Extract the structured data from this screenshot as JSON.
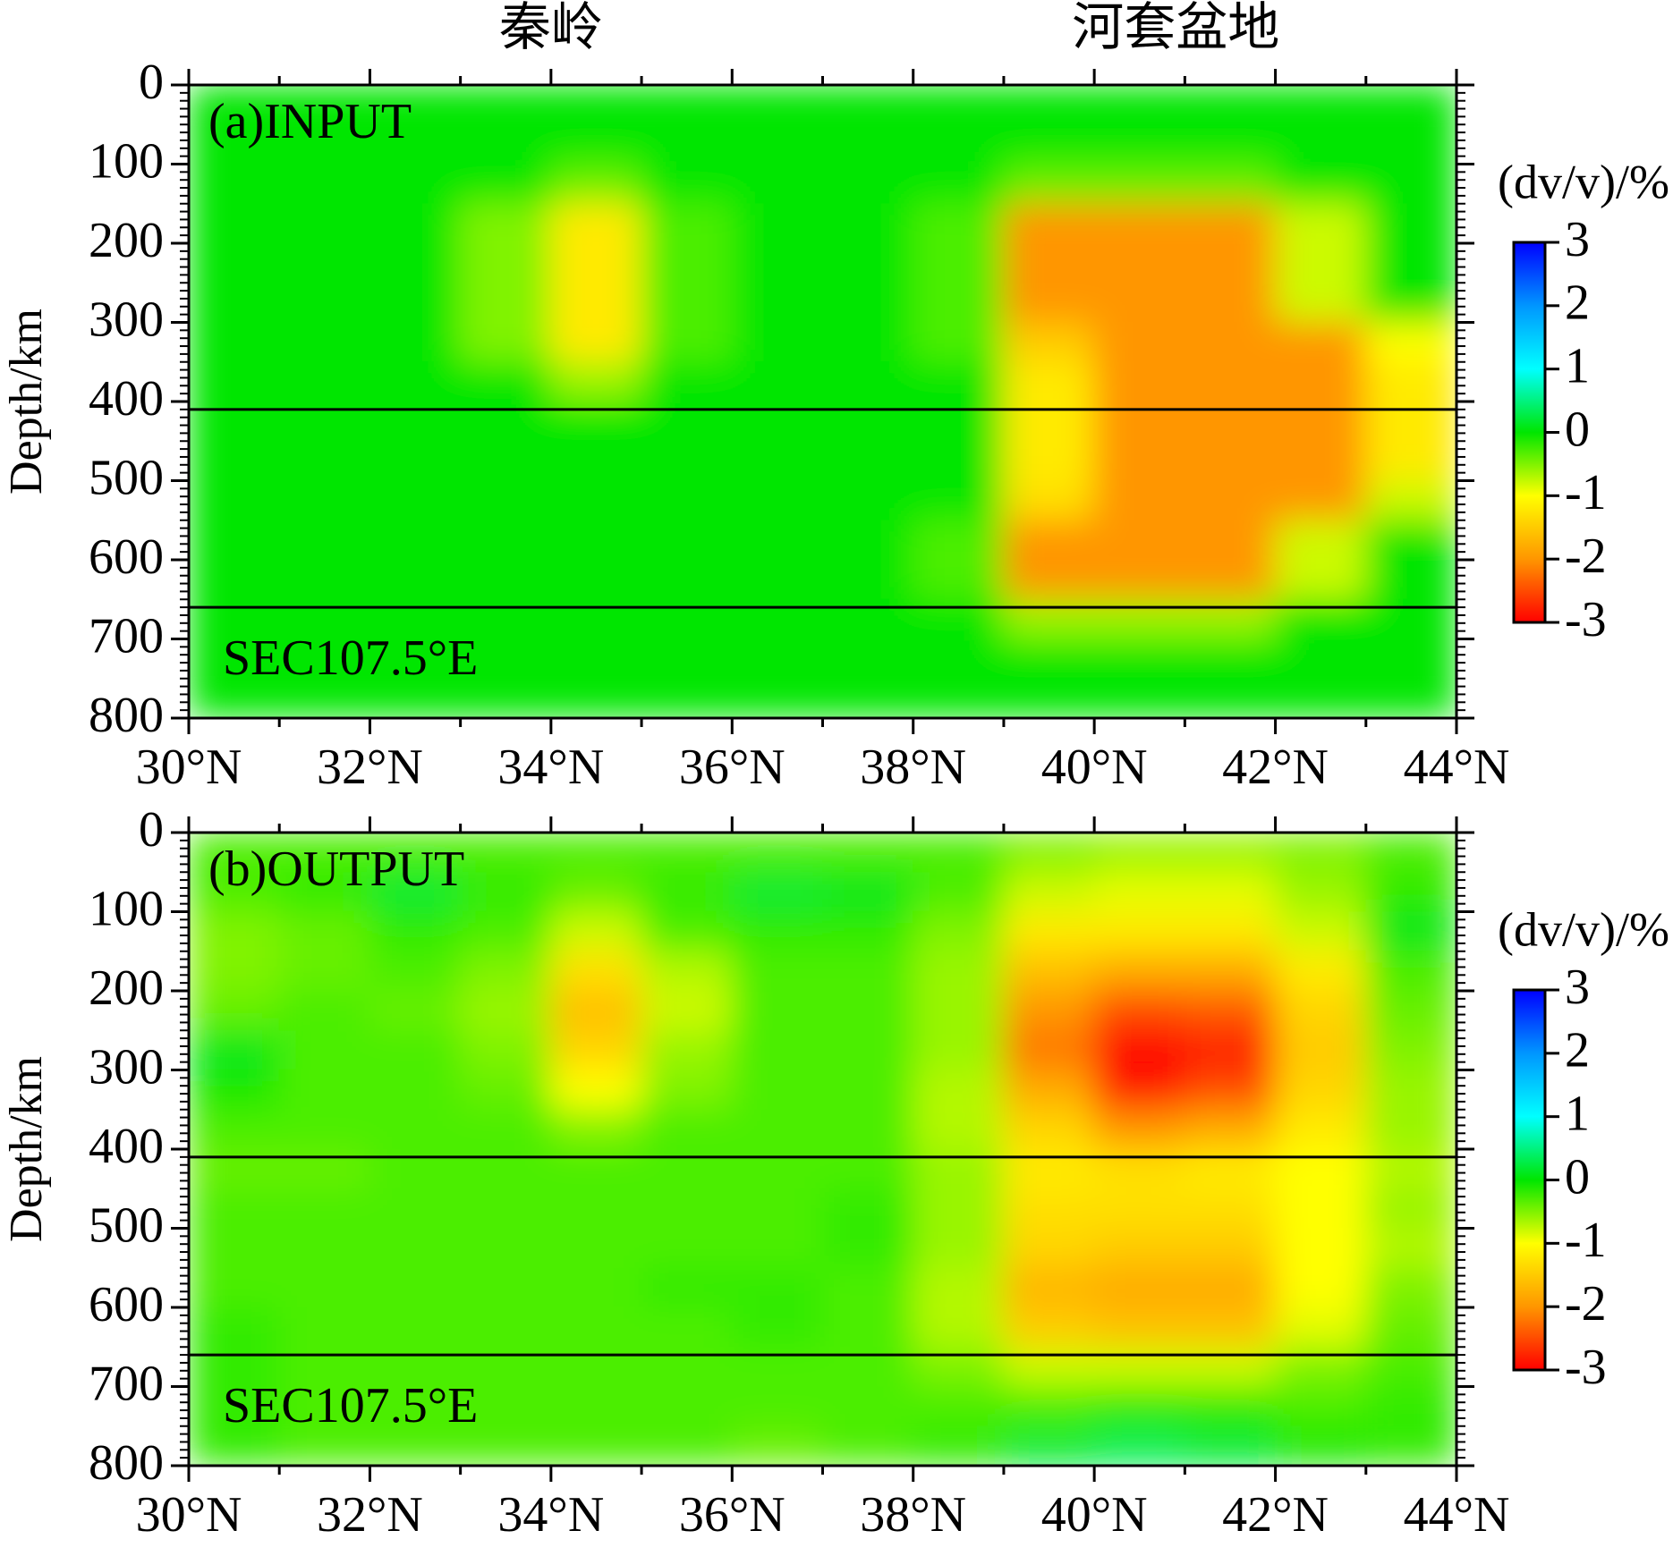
{
  "chart_data": [
    {
      "type": "heatmap",
      "top_labels": [
        {
          "text": "秦岭",
          "x": 34
        },
        {
          "text": "河套盆地",
          "x": 40.9
        }
      ],
      "panel_label": "(a)INPUT",
      "section_label": "SEC107.5°E",
      "y_label": "Depth/km",
      "x_edges": [
        30,
        31,
        32,
        33,
        34,
        35,
        36,
        37,
        38,
        39,
        40,
        41,
        42,
        43,
        44
      ],
      "y_edges": [
        0,
        50,
        100,
        150,
        200,
        250,
        300,
        350,
        400,
        450,
        500,
        550,
        600,
        650,
        700,
        750,
        800
      ],
      "z": [
        [
          0,
          0,
          0,
          0,
          0,
          0,
          0,
          0,
          0,
          0,
          0,
          0,
          0,
          0
        ],
        [
          0,
          0,
          0,
          0,
          0,
          0,
          0,
          0,
          0,
          0,
          0,
          0,
          0,
          0
        ],
        [
          0,
          0,
          0,
          0,
          -0.4,
          0,
          0,
          0,
          0,
          -0.4,
          -0.4,
          -0.4,
          0,
          0
        ],
        [
          0,
          0,
          0,
          -0.5,
          -1.2,
          -0.3,
          0,
          0,
          -0.3,
          -2,
          -2,
          -2,
          -0.8,
          0
        ],
        [
          0,
          0,
          0,
          -0.5,
          -1.2,
          -0.3,
          0,
          0,
          -0.3,
          -2,
          -2,
          -2,
          -0.8,
          0
        ],
        [
          0,
          0,
          0,
          -0.5,
          -1.2,
          -0.3,
          0,
          0,
          -0.3,
          -2,
          -2,
          -2,
          -0.8,
          0
        ],
        [
          0,
          0,
          0,
          -0.5,
          -1.2,
          -0.3,
          0,
          0,
          -0.3,
          -1.5,
          -2,
          -2,
          -2,
          -1
        ],
        [
          0,
          0,
          0,
          0,
          -0.6,
          0,
          0,
          0,
          0,
          -1.2,
          -2,
          -2,
          -2,
          -1.2
        ],
        [
          0,
          0,
          0,
          0,
          0,
          0,
          0,
          0,
          0,
          -1.2,
          -2,
          -2,
          -2,
          -1.2
        ],
        [
          0,
          0,
          0,
          0,
          0,
          0,
          0,
          0,
          0,
          -1.2,
          -2,
          -2,
          -2,
          -1.2
        ],
        [
          0,
          0,
          0,
          0,
          0,
          0,
          0,
          0,
          0,
          -1.3,
          -2,
          -2,
          -2,
          -0.8
        ],
        [
          0,
          0,
          0,
          0,
          0,
          0,
          0,
          0,
          -0.3,
          -2,
          -2,
          -2,
          -0.8,
          0
        ],
        [
          0,
          0,
          0,
          0,
          0,
          0,
          0,
          0,
          -0.3,
          -2,
          -2,
          -2,
          -0.8,
          0
        ],
        [
          0,
          0,
          0,
          0,
          0,
          0,
          0,
          0,
          0,
          -0.6,
          -0.6,
          -0.6,
          0,
          0
        ],
        [
          0,
          0,
          0,
          0,
          0,
          0,
          0,
          0,
          0,
          0,
          0,
          0,
          0,
          0
        ],
        [
          0,
          0,
          0,
          0,
          0,
          0,
          0,
          0,
          0,
          0,
          0,
          0,
          0,
          0
        ]
      ],
      "xlim": [
        30,
        44
      ],
      "xticks": [
        {
          "value": 30,
          "label": "30°N"
        },
        {
          "value": 32,
          "label": "32°N"
        },
        {
          "value": 34,
          "label": "34°N"
        },
        {
          "value": 36,
          "label": "36°N"
        },
        {
          "value": 38,
          "label": "38°N"
        },
        {
          "value": 40,
          "label": "40°N"
        },
        {
          "value": 42,
          "label": "42°N"
        },
        {
          "value": 44,
          "label": "44°N"
        }
      ],
      "ylim": [
        0,
        800
      ],
      "yticks": [
        0,
        100,
        200,
        300,
        400,
        500,
        600,
        700,
        800
      ],
      "boundary_lines": [
        410,
        660
      ],
      "zlim": [
        -3,
        3
      ],
      "zticks": [
        3,
        2,
        1,
        0,
        -1,
        -2,
        -3
      ],
      "colors": [
        "#ff0000",
        "#ff9600",
        "#ffff00",
        "#00e600",
        "#00ffff",
        "#0096ff",
        "#0000ff"
      ],
      "colorbar_label": "(dv/v)/%"
    },
    {
      "type": "heatmap",
      "panel_label": "(b)OUTPUT",
      "section_label": "SEC107.5°E",
      "y_label": "Depth/km",
      "x_edges": [
        30,
        31,
        32,
        33,
        34,
        35,
        36,
        37,
        38,
        39,
        40,
        41,
        42,
        43,
        44
      ],
      "y_edges": [
        0,
        50,
        100,
        150,
        200,
        250,
        300,
        350,
        400,
        450,
        500,
        550,
        600,
        650,
        700,
        750,
        800
      ],
      "z": [
        [
          -0.3,
          -0.3,
          -0.3,
          -0.3,
          -0.3,
          -0.3,
          -0.3,
          -0.3,
          -0.3,
          -0.5,
          -0.6,
          -0.6,
          -0.5,
          -0.3
        ],
        [
          -0.3,
          -0.2,
          0.2,
          -0.2,
          -0.4,
          -0.2,
          0.2,
          0.1,
          -0.3,
          -0.8,
          -0.9,
          -0.9,
          -0.6,
          -0.2
        ],
        [
          -0.5,
          -0.4,
          -0.2,
          -0.3,
          -0.8,
          -0.3,
          -0.2,
          -0.2,
          -0.5,
          -1.2,
          -1.2,
          -1.2,
          -0.8,
          0.1
        ],
        [
          -0.5,
          -0.4,
          -0.3,
          -0.5,
          -1.3,
          -0.7,
          -0.3,
          -0.3,
          -0.6,
          -1.6,
          -1.8,
          -1.8,
          -1.2,
          -0.3
        ],
        [
          -0.4,
          -0.3,
          -0.4,
          -0.6,
          -1.6,
          -0.8,
          -0.3,
          -0.3,
          -0.6,
          -2,
          -2.5,
          -2.4,
          -1.4,
          -0.4
        ],
        [
          0.1,
          -0.3,
          -0.3,
          -0.5,
          -1.4,
          -0.6,
          -0.3,
          -0.3,
          -0.6,
          -2.2,
          -3,
          -2.8,
          -1.5,
          -0.5
        ],
        [
          -0.1,
          -0.3,
          -0.3,
          -0.4,
          -1,
          -0.5,
          -0.3,
          -0.3,
          -0.7,
          -1.8,
          -2.8,
          -2.5,
          -1.4,
          -0.6
        ],
        [
          -0.3,
          -0.3,
          -0.3,
          -0.3,
          -0.5,
          -0.3,
          -0.3,
          -0.3,
          -0.7,
          -1.4,
          -2,
          -1.8,
          -1.2,
          -0.6
        ],
        [
          -0.4,
          -0.4,
          -0.3,
          -0.3,
          -0.3,
          -0.3,
          -0.3,
          -0.3,
          -0.6,
          -1.2,
          -1.3,
          -1.2,
          -1,
          -0.7
        ],
        [
          -0.3,
          -0.3,
          -0.3,
          -0.3,
          -0.3,
          -0.3,
          -0.3,
          -0.2,
          -0.6,
          -1.3,
          -1.3,
          -1.3,
          -1,
          -0.6
        ],
        [
          -0.3,
          -0.3,
          -0.3,
          -0.3,
          -0.3,
          -0.3,
          -0.3,
          -0.2,
          -0.6,
          -1.4,
          -1.5,
          -1.5,
          -1,
          -0.7
        ],
        [
          -0.3,
          -0.3,
          -0.3,
          -0.3,
          -0.3,
          -0.2,
          -0.2,
          -0.3,
          -0.7,
          -1.7,
          -1.8,
          -1.8,
          -1,
          -0.5
        ],
        [
          -0.2,
          -0.3,
          -0.3,
          -0.3,
          -0.3,
          -0.3,
          -0.2,
          -0.3,
          -0.7,
          -1.5,
          -1.6,
          -1.6,
          -0.9,
          -0.4
        ],
        [
          -0.2,
          -0.3,
          -0.3,
          -0.3,
          -0.3,
          -0.3,
          -0.3,
          -0.3,
          -0.5,
          -0.8,
          -0.8,
          -0.8,
          -0.5,
          -0.3
        ],
        [
          -0.2,
          -0.3,
          -0.3,
          -0.3,
          -0.3,
          -0.3,
          -0.3,
          -0.3,
          -0.3,
          -0.3,
          -0.2,
          -0.2,
          -0.3,
          -0.2
        ],
        [
          -0.2,
          -0.3,
          -0.3,
          -0.3,
          -0.3,
          -0.3,
          -0.4,
          -0.3,
          -0.2,
          0.2,
          0.3,
          0.2,
          -0.1,
          -0.2
        ]
      ],
      "xlim": [
        30,
        44
      ],
      "xticks": [
        {
          "value": 30,
          "label": "30°N"
        },
        {
          "value": 32,
          "label": "32°N"
        },
        {
          "value": 34,
          "label": "34°N"
        },
        {
          "value": 36,
          "label": "36°N"
        },
        {
          "value": 38,
          "label": "38°N"
        },
        {
          "value": 40,
          "label": "40°N"
        },
        {
          "value": 42,
          "label": "42°N"
        },
        {
          "value": 44,
          "label": "44°N"
        }
      ],
      "ylim": [
        0,
        800
      ],
      "yticks": [
        0,
        100,
        200,
        300,
        400,
        500,
        600,
        700,
        800
      ],
      "boundary_lines": [
        410,
        660
      ],
      "zlim": [
        -3,
        3
      ],
      "zticks": [
        3,
        2,
        1,
        0,
        -1,
        -2,
        -3
      ],
      "colors": [
        "#ff0000",
        "#ff9600",
        "#ffff00",
        "#00e600",
        "#00ffff",
        "#0096ff",
        "#0000ff"
      ],
      "colorbar_label": "(dv/v)/%"
    }
  ]
}
